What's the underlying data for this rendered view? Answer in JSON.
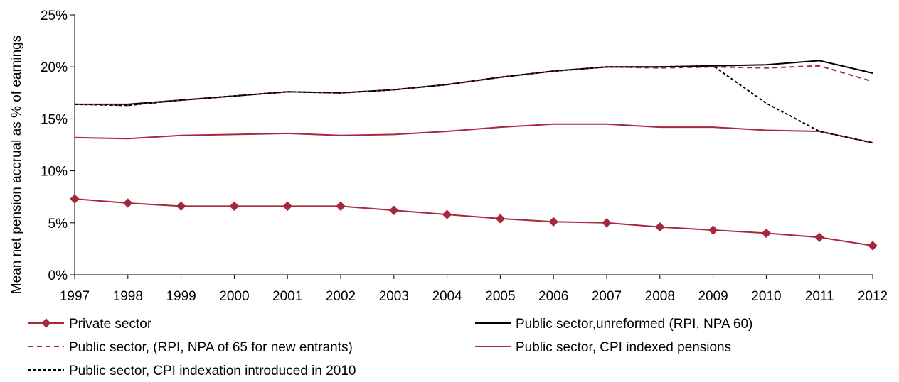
{
  "chart_data": {
    "type": "line",
    "ylabel": "Mean net pension accrual as % of earnings",
    "x": [
      1997,
      1998,
      1999,
      2000,
      2001,
      2002,
      2003,
      2004,
      2005,
      2006,
      2007,
      2008,
      2009,
      2010,
      2011,
      2012
    ],
    "x_tick_labels": [
      "1997",
      "1998",
      "1999",
      "2000",
      "2001",
      "2002",
      "2003",
      "2004",
      "2005",
      "2006",
      "2007",
      "2008",
      "2009",
      "2010",
      "2011",
      "2012"
    ],
    "ylim": [
      0,
      25
    ],
    "y_ticks": [
      0,
      5,
      10,
      15,
      20,
      25
    ],
    "y_tick_labels": [
      "0%",
      "5%",
      "10%",
      "15%",
      "20%",
      "25%"
    ],
    "grid": false,
    "legend_position": "bottom",
    "series": [
      {
        "name": "Private sector",
        "color": "#a6283c",
        "style": "solid-diamond",
        "values": [
          7.3,
          6.9,
          6.6,
          6.6,
          6.6,
          6.6,
          6.2,
          5.8,
          5.4,
          5.1,
          5.0,
          4.6,
          4.3,
          4.0,
          3.6,
          2.8
        ]
      },
      {
        "name": "Public sector,unreformed (RPI, NPA 60)",
        "color": "#000000",
        "style": "solid",
        "values": [
          16.4,
          16.4,
          16.8,
          17.2,
          17.6,
          17.5,
          17.8,
          18.3,
          19.0,
          19.6,
          20.0,
          20.0,
          20.1,
          20.2,
          20.6,
          19.4
        ]
      },
      {
        "name": "Public sector, (RPI, NPA of 65 for new entrants)",
        "color": "#a6283c",
        "style": "dashed",
        "values": [
          16.4,
          16.3,
          16.8,
          17.2,
          17.6,
          17.5,
          17.8,
          18.3,
          19.0,
          19.6,
          20.0,
          19.9,
          20.0,
          19.9,
          20.1,
          18.6
        ]
      },
      {
        "name": "Public sector, CPI indexed pensions",
        "color": "#a6283c",
        "style": "solid",
        "values": [
          13.2,
          13.1,
          13.4,
          13.5,
          13.6,
          13.4,
          13.5,
          13.8,
          14.2,
          14.5,
          14.5,
          14.2,
          14.2,
          13.9,
          13.8,
          12.7
        ]
      },
      {
        "name": "Public sector, CPI indexation introduced in 2010",
        "color": "#000000",
        "style": "dotted",
        "values": [
          16.4,
          16.3,
          16.8,
          17.2,
          17.6,
          17.5,
          17.8,
          18.3,
          19.0,
          19.6,
          20.0,
          20.0,
          20.1,
          16.5,
          13.8,
          12.7
        ]
      }
    ]
  }
}
